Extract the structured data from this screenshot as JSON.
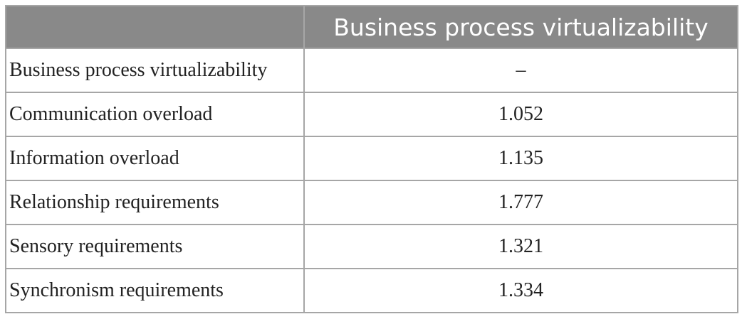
{
  "table": {
    "header": {
      "col1": "",
      "col2": "Business process virtualizability"
    },
    "rows": [
      {
        "label": "Business process virtualizability",
        "value": "–"
      },
      {
        "label": "Communication overload",
        "value": "1.052"
      },
      {
        "label": "Information overload",
        "value": "1.135"
      },
      {
        "label": "Relationship requirements",
        "value": "1.777"
      },
      {
        "label": "Sensory requirements",
        "value": "1.321"
      },
      {
        "label": "Synchronism requirements",
        "value": "1.334"
      }
    ]
  }
}
